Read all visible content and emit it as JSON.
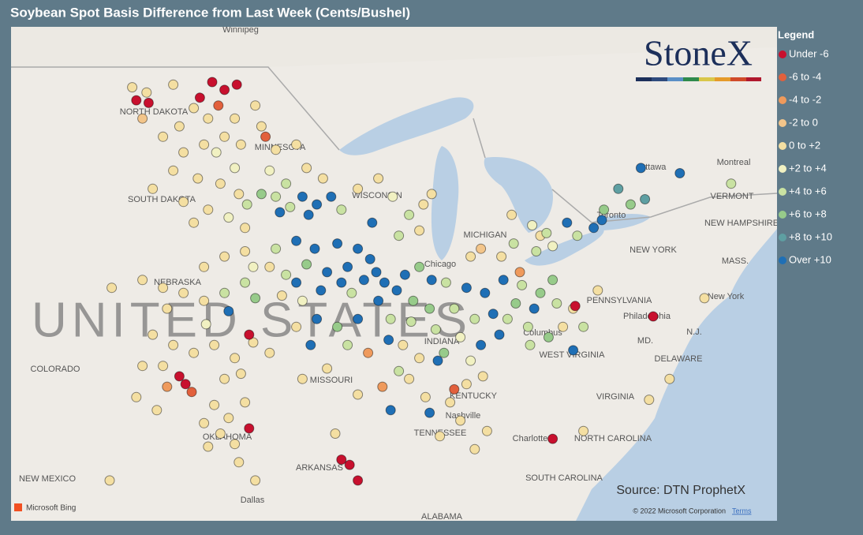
{
  "title": "Soybean Spot Basis Difference from Last Week (Cents/Bushel)",
  "legend": {
    "title": "Legend",
    "items": [
      {
        "label": "Under -6",
        "color": "#c8102e"
      },
      {
        "label": "-6 to -4",
        "color": "#e2603c"
      },
      {
        "label": "-4 to -2",
        "color": "#ef9a5c"
      },
      {
        "label": "-2 to 0",
        "color": "#f3c58a"
      },
      {
        "label": "0 to +2",
        "color": "#f4dfa2"
      },
      {
        "label": "+2 to +4",
        "color": "#f1f1c2"
      },
      {
        "label": "+4 to +6",
        "color": "#c9e2a2"
      },
      {
        "label": "+6 to +8",
        "color": "#97cb8a"
      },
      {
        "label": "+8 to +10",
        "color": "#5e9fa2"
      },
      {
        "label": "Over +10",
        "color": "#1f6fb5"
      }
    ]
  },
  "logo": "StoneX",
  "source": "Source: DTN ProphetX",
  "watermark": "UNITED STATES",
  "place_labels": [
    "Winnipeg",
    "NORTH DAKOTA",
    "MINNESOTA",
    "SOUTH DAKOTA",
    "WISCONSIN",
    "MICHIGAN",
    "Chicago",
    "NEBRASKA",
    "COLORADO",
    "MISSOURI",
    "INDIANA",
    "KENTUCKY",
    "Nashville",
    "TENNESSEE",
    "OKLAHOMA",
    "ARKANSAS",
    "NEW MEXICO",
    "Dallas",
    "ALABAMA",
    "SOUTH CAROLINA",
    "NORTH CAROLINA",
    "Charlotte",
    "VIRGINIA",
    "WEST VIRGINIA",
    "DELAWARE",
    "MD.",
    "N.J.",
    "Philadelphia",
    "PENNSYLVANIA",
    "New York",
    "NEW YORK",
    "Columbus",
    "Toronto",
    "Ottawa",
    "Montreal",
    "VERMONT",
    "NEW HAMPSHIRE",
    "MASS."
  ],
  "attribution": {
    "bing": "Microsoft Bing",
    "copyright": "© 2022 Microsoft Corporation",
    "terms": "Terms"
  },
  "points": [
    [
      -102.5,
      48.7,
      4
    ],
    [
      -101.8,
      48.5,
      4
    ],
    [
      -100.5,
      48.8,
      4
    ],
    [
      -99.5,
      47.9,
      4
    ],
    [
      -98.8,
      47.5,
      4
    ],
    [
      -100.2,
      47.2,
      4
    ],
    [
      -101,
      46.8,
      4
    ],
    [
      -99,
      46.5,
      4
    ],
    [
      -98,
      46.8,
      4
    ],
    [
      -97.5,
      47.5,
      4
    ],
    [
      -102,
      47.5,
      3
    ],
    [
      -100,
      46.2,
      4
    ],
    [
      -98.4,
      46.2,
      5
    ],
    [
      -97.2,
      46.5,
      4
    ],
    [
      -98.6,
      48.9,
      0
    ],
    [
      -98.0,
      48.6,
      0
    ],
    [
      -99.2,
      48.3,
      0
    ],
    [
      -101.7,
      48.1,
      0
    ],
    [
      -97.4,
      48.8,
      0
    ],
    [
      -98.3,
      48.0,
      1
    ],
    [
      -102.3,
      48.2,
      0
    ],
    [
      -100.5,
      45.5,
      4
    ],
    [
      -99.3,
      45.2,
      4
    ],
    [
      -98.2,
      45,
      4
    ],
    [
      -97.3,
      44.6,
      4
    ],
    [
      -100,
      44.3,
      4
    ],
    [
      -98.8,
      44,
      4
    ],
    [
      -97.8,
      43.7,
      5
    ],
    [
      -97,
      43.3,
      4
    ],
    [
      -99.5,
      43.5,
      4
    ],
    [
      -101.5,
      44.8,
      4
    ],
    [
      -96.9,
      44.2,
      6
    ],
    [
      -97.5,
      45.6,
      5
    ],
    [
      -96.5,
      48,
      4
    ],
    [
      -96.2,
      47.2,
      4
    ],
    [
      -95.5,
      46.3,
      4
    ],
    [
      -95.8,
      45.5,
      5
    ],
    [
      -95,
      45,
      6
    ],
    [
      -94.2,
      44.5,
      9
    ],
    [
      -93.5,
      44.2,
      9
    ],
    [
      -94.8,
      44.1,
      6
    ],
    [
      -95.5,
      44.5,
      6
    ],
    [
      -93.2,
      45.2,
      4
    ],
    [
      -96,
      46.8,
      1
    ],
    [
      -94.5,
      46.5,
      4
    ],
    [
      -92.8,
      44.5,
      9
    ],
    [
      -93.9,
      43.8,
      9
    ],
    [
      -92.3,
      44,
      6
    ],
    [
      -95.3,
      43.9,
      9
    ],
    [
      -96.2,
      44.6,
      7
    ],
    [
      -94,
      45.6,
      4
    ],
    [
      -91.5,
      44.8,
      4
    ],
    [
      -90.5,
      45.2,
      4
    ],
    [
      -89.8,
      44.5,
      5
    ],
    [
      -89,
      43.8,
      6
    ],
    [
      -88.3,
      44.2,
      4
    ],
    [
      -90.8,
      43.5,
      9
    ],
    [
      -89.5,
      43,
      6
    ],
    [
      -88.5,
      43.2,
      4
    ],
    [
      -87.9,
      44.6,
      4
    ],
    [
      -95.5,
      42.5,
      6
    ],
    [
      -94.5,
      42.8,
      9
    ],
    [
      -93.6,
      42.5,
      9
    ],
    [
      -92.5,
      42.7,
      9
    ],
    [
      -91.5,
      42.5,
      9
    ],
    [
      -90.9,
      42.1,
      9
    ],
    [
      -92,
      41.8,
      9
    ],
    [
      -93,
      41.6,
      9
    ],
    [
      -94,
      41.9,
      7
    ],
    [
      -95,
      41.5,
      6
    ],
    [
      -95.8,
      41.8,
      4
    ],
    [
      -94.5,
      41.2,
      9
    ],
    [
      -93.3,
      40.9,
      9
    ],
    [
      -92.3,
      41.2,
      9
    ],
    [
      -91.2,
      41.3,
      9
    ],
    [
      -90.6,
      41.6,
      9
    ],
    [
      -91.8,
      40.8,
      6
    ],
    [
      -95.2,
      40.7,
      4
    ],
    [
      -94.2,
      40.5,
      5
    ],
    [
      -102,
      41.3,
      4
    ],
    [
      -101,
      41,
      4
    ],
    [
      -100,
      40.8,
      4
    ],
    [
      -99,
      40.5,
      4
    ],
    [
      -98,
      40.8,
      6
    ],
    [
      -97,
      41.2,
      6
    ],
    [
      -96.5,
      40.6,
      7
    ],
    [
      -99,
      41.8,
      4
    ],
    [
      -98,
      42.2,
      4
    ],
    [
      -97,
      42.4,
      4
    ],
    [
      -100.8,
      40.2,
      4
    ],
    [
      -97.8,
      40.1,
      9
    ],
    [
      -96.6,
      41.8,
      5
    ],
    [
      -103.5,
      41,
      4
    ],
    [
      -101.5,
      39.2,
      4
    ],
    [
      -100.5,
      38.8,
      4
    ],
    [
      -99.5,
      38.5,
      4
    ],
    [
      -98.5,
      38.8,
      4
    ],
    [
      -97.5,
      38.3,
      4
    ],
    [
      -96.6,
      38.9,
      4
    ],
    [
      -99.9,
      37.3,
      0
    ],
    [
      -100.2,
      37.6,
      0
    ],
    [
      -99.6,
      37,
      1
    ],
    [
      -101,
      38,
      4
    ],
    [
      -98,
      37.5,
      4
    ],
    [
      -97.2,
      37.7,
      4
    ],
    [
      -96.8,
      39.2,
      0
    ],
    [
      -95.8,
      38.5,
      4
    ],
    [
      -100.8,
      37.2,
      2
    ],
    [
      -102,
      38,
      4
    ],
    [
      -98.9,
      39.6,
      5
    ],
    [
      -98.5,
      36.5,
      4
    ],
    [
      -97.8,
      36,
      4
    ],
    [
      -98.2,
      35.4,
      4
    ],
    [
      -97.5,
      35,
      4
    ],
    [
      -99,
      35.8,
      4
    ],
    [
      -97,
      36.6,
      4
    ],
    [
      -98.8,
      34.9,
      4
    ],
    [
      -96.8,
      35.6,
      0
    ],
    [
      -97.3,
      34.3,
      4
    ],
    [
      -102.3,
      36.8,
      4
    ],
    [
      -101.3,
      36.3,
      4
    ],
    [
      -103.6,
      33.6,
      4
    ],
    [
      -96.5,
      33.6,
      4
    ],
    [
      -94.5,
      39.5,
      4
    ],
    [
      -93.5,
      39.8,
      9
    ],
    [
      -92.5,
      39.5,
      7
    ],
    [
      -91.5,
      39.8,
      9
    ],
    [
      -93.8,
      38.8,
      9
    ],
    [
      -92,
      38.8,
      6
    ],
    [
      -91,
      38.5,
      2
    ],
    [
      -93,
      37.9,
      4
    ],
    [
      -94.2,
      37.5,
      4
    ],
    [
      -91.5,
      36.9,
      4
    ],
    [
      -90.3,
      37.2,
      2
    ],
    [
      -89.9,
      36.3,
      9
    ],
    [
      -89.5,
      37.8,
      6
    ],
    [
      -90.5,
      40.5,
      9
    ],
    [
      -89.6,
      40.9,
      9
    ],
    [
      -88.8,
      40.5,
      7
    ],
    [
      -89.2,
      41.5,
      9
    ],
    [
      -88.5,
      41.8,
      7
    ],
    [
      -90.2,
      41.2,
      9
    ],
    [
      -89.9,
      39.8,
      6
    ],
    [
      -88.9,
      39.7,
      6
    ],
    [
      -88,
      40.2,
      7
    ],
    [
      -89.3,
      38.8,
      4
    ],
    [
      -88.5,
      38.3,
      4
    ],
    [
      -90,
      39,
      9
    ],
    [
      -87.9,
      41.3,
      9
    ],
    [
      -87.7,
      39.4,
      6
    ],
    [
      -89,
      37.5,
      4
    ],
    [
      -87.2,
      41.2,
      6
    ],
    [
      -86.2,
      41,
      9
    ],
    [
      -85.3,
      40.8,
      9
    ],
    [
      -86.8,
      40.2,
      6
    ],
    [
      -85.8,
      39.8,
      6
    ],
    [
      -84.9,
      40,
      9
    ],
    [
      -86.5,
      39.1,
      5
    ],
    [
      -87.3,
      38.5,
      7
    ],
    [
      -85.5,
      38.8,
      9
    ],
    [
      -86,
      38.2,
      5
    ],
    [
      -87.6,
      38.2,
      9
    ],
    [
      -84.4,
      41.3,
      9
    ],
    [
      -83.5,
      41.1,
      6
    ],
    [
      -82.6,
      40.8,
      7
    ],
    [
      -83.8,
      40.4,
      7
    ],
    [
      -82.9,
      40.2,
      9
    ],
    [
      -81.8,
      40.4,
      6
    ],
    [
      -84.2,
      39.8,
      6
    ],
    [
      -83.2,
      39.5,
      6
    ],
    [
      -82.2,
      39.1,
      7
    ],
    [
      -81.5,
      39.5,
      4
    ],
    [
      -81,
      40.2,
      4
    ],
    [
      -84.6,
      39.2,
      9
    ],
    [
      -83.1,
      38.8,
      6
    ],
    [
      -83.6,
      41.6,
      2
    ],
    [
      -82,
      41.3,
      7
    ],
    [
      -84.5,
      42.2,
      4
    ],
    [
      -83.9,
      42.7,
      6
    ],
    [
      -83,
      43.4,
      5
    ],
    [
      -82.8,
      42.4,
      6
    ],
    [
      -85.5,
      42.5,
      3
    ],
    [
      -84,
      43.8,
      4
    ],
    [
      -86,
      42.2,
      4
    ],
    [
      -82.6,
      43,
      4
    ],
    [
      -86.2,
      37.3,
      4
    ],
    [
      -85.4,
      37.6,
      4
    ],
    [
      -87,
      36.6,
      4
    ],
    [
      -86.5,
      35.9,
      4
    ],
    [
      -85.2,
      35.5,
      4
    ],
    [
      -88,
      36.2,
      9
    ],
    [
      -86.8,
      37.1,
      1
    ],
    [
      -87.5,
      35.3,
      4
    ],
    [
      -85.8,
      34.8,
      4
    ],
    [
      -88.2,
      36.8,
      4
    ],
    [
      -92.6,
      35.4,
      4
    ],
    [
      -92.3,
      34.4,
      0
    ],
    [
      -91.5,
      33.6,
      0
    ],
    [
      -91.9,
      34.2,
      0
    ],
    [
      -80,
      43.3,
      9
    ],
    [
      -80.8,
      43,
      6
    ],
    [
      -79.5,
      44,
      7
    ],
    [
      -81.3,
      43.5,
      9
    ],
    [
      -78.2,
      44.2,
      7
    ],
    [
      -77.5,
      44.4,
      8
    ],
    [
      -82.3,
      43.1,
      6
    ],
    [
      -82,
      42.6,
      5
    ],
    [
      -75.8,
      45.4,
      9
    ],
    [
      -77.7,
      45.6,
      9
    ],
    [
      -73.3,
      45,
      6
    ],
    [
      -79.6,
      43.6,
      9
    ],
    [
      -78.8,
      44.8,
      8
    ],
    [
      -77.1,
      39.9,
      0
    ],
    [
      -82,
      35.2,
      0
    ],
    [
      -80.5,
      35.5,
      4
    ],
    [
      -77.3,
      36.7,
      4
    ],
    [
      -74.6,
      40.6,
      4
    ],
    [
      -79.8,
      40.9,
      4
    ],
    [
      -80.5,
      39.5,
      6
    ],
    [
      -81,
      38.6,
      9
    ],
    [
      -80.9,
      40.3,
      0
    ],
    [
      -76.3,
      37.5,
      4
    ]
  ]
}
